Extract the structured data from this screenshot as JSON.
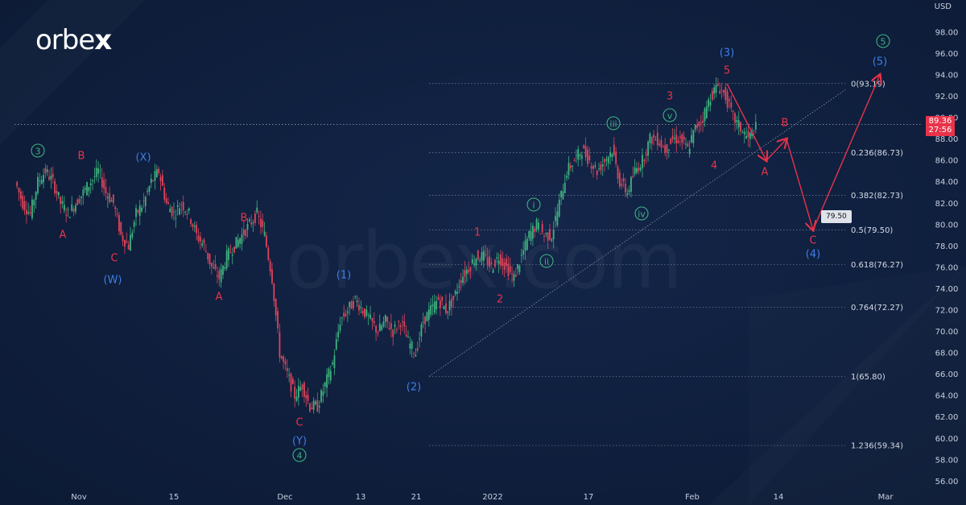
{
  "brand": {
    "name": "orbe",
    "x_mark": "x",
    "watermark": "orbex.com"
  },
  "axis": {
    "currency": "USD"
  },
  "current_price": {
    "value": "89.36",
    "countdown": "27:56"
  },
  "target_flag": "79.50",
  "colors": {
    "background": "#0f1f3d",
    "up": "#3fb37f",
    "down": "#e0445a",
    "wave_red": "#e8334a",
    "wave_blue": "#3f7ee8",
    "wave_green": "#3fb37f",
    "fib_line": "#8f9bb3"
  },
  "chart_data": {
    "type": "line",
    "ylim": [
      55,
      100
    ],
    "y_ticks": [
      "98.00",
      "96.00",
      "94.00",
      "92.00",
      "90.00",
      "88.00",
      "86.00",
      "84.00",
      "82.00",
      "80.00",
      "78.00",
      "76.00",
      "74.00",
      "72.00",
      "70.00",
      "68.00",
      "66.00",
      "64.00",
      "62.00",
      "60.00",
      "58.00",
      "56.00"
    ],
    "x_ticks": [
      "Nov",
      "15",
      "Dec",
      "13",
      "21",
      "2022",
      "17",
      "Feb",
      "14",
      "Mar"
    ],
    "series": [
      {
        "values": [
          84,
          82,
          81,
          84,
          85,
          84,
          82,
          81,
          82,
          83,
          84,
          85,
          83,
          82,
          79,
          78,
          81,
          82,
          84,
          85,
          82,
          81,
          82,
          81,
          79,
          78,
          76,
          75,
          77,
          78,
          79,
          80,
          81,
          79,
          75,
          68,
          66,
          64,
          65,
          63,
          63,
          65,
          67,
          71,
          72,
          73,
          72,
          71,
          70,
          71,
          70,
          71,
          69,
          68,
          71,
          72,
          73,
          72,
          73,
          75,
          76,
          77,
          77,
          76,
          77,
          76,
          75,
          77,
          79,
          80,
          79,
          79,
          82,
          85,
          86,
          87,
          86,
          85,
          86,
          87,
          84,
          83,
          85,
          86,
          88,
          88,
          87,
          88,
          88,
          87,
          89,
          90,
          92,
          93,
          92,
          90,
          89,
          88,
          89
        ]
      }
    ],
    "fib_levels": [
      {
        "label": "0(93.19)",
        "value": 93.19
      },
      {
        "label": "0.236(86.73)",
        "value": 86.73
      },
      {
        "label": "0.382(82.73)",
        "value": 82.73
      },
      {
        "label": "0.5(79.50)",
        "value": 79.5
      },
      {
        "label": "0.618(76.27)",
        "value": 76.27
      },
      {
        "label": "0.764(72.27)",
        "value": 72.27
      },
      {
        "label": "1(65.80)",
        "value": 65.8
      },
      {
        "label": "1.236(59.34)",
        "value": 59.34
      }
    ],
    "projection": [
      93.19,
      86.0,
      88.0,
      79.5,
      94.0
    ],
    "wave_labels": [
      {
        "text": "3",
        "style": "green-circle"
      },
      {
        "text": "B",
        "style": "red"
      },
      {
        "text": "(X)",
        "style": "blue"
      },
      {
        "text": "A",
        "style": "red"
      },
      {
        "text": "C",
        "style": "red"
      },
      {
        "text": "(W)",
        "style": "blue"
      },
      {
        "text": "B",
        "style": "red"
      },
      {
        "text": "A",
        "style": "red"
      },
      {
        "text": "C",
        "style": "red"
      },
      {
        "text": "(Y)",
        "style": "blue"
      },
      {
        "text": "4",
        "style": "green-circle"
      },
      {
        "text": "(1)",
        "style": "blue"
      },
      {
        "text": "(2)",
        "style": "blue"
      },
      {
        "text": "1",
        "style": "red"
      },
      {
        "text": "2",
        "style": "red"
      },
      {
        "text": "i",
        "style": "green-circle"
      },
      {
        "text": "ii",
        "style": "green-circle"
      },
      {
        "text": "iii",
        "style": "green-circle"
      },
      {
        "text": "iv",
        "style": "green-circle"
      },
      {
        "text": "v",
        "style": "green-circle"
      },
      {
        "text": "3",
        "style": "red"
      },
      {
        "text": "4",
        "style": "red"
      },
      {
        "text": "(3)",
        "style": "blue"
      },
      {
        "text": "5",
        "style": "red"
      },
      {
        "text": "A",
        "style": "red"
      },
      {
        "text": "B",
        "style": "red"
      },
      {
        "text": "C",
        "style": "red"
      },
      {
        "text": "(4)",
        "style": "blue"
      },
      {
        "text": "(5)",
        "style": "blue"
      },
      {
        "text": "5",
        "style": "green-circle"
      }
    ]
  }
}
